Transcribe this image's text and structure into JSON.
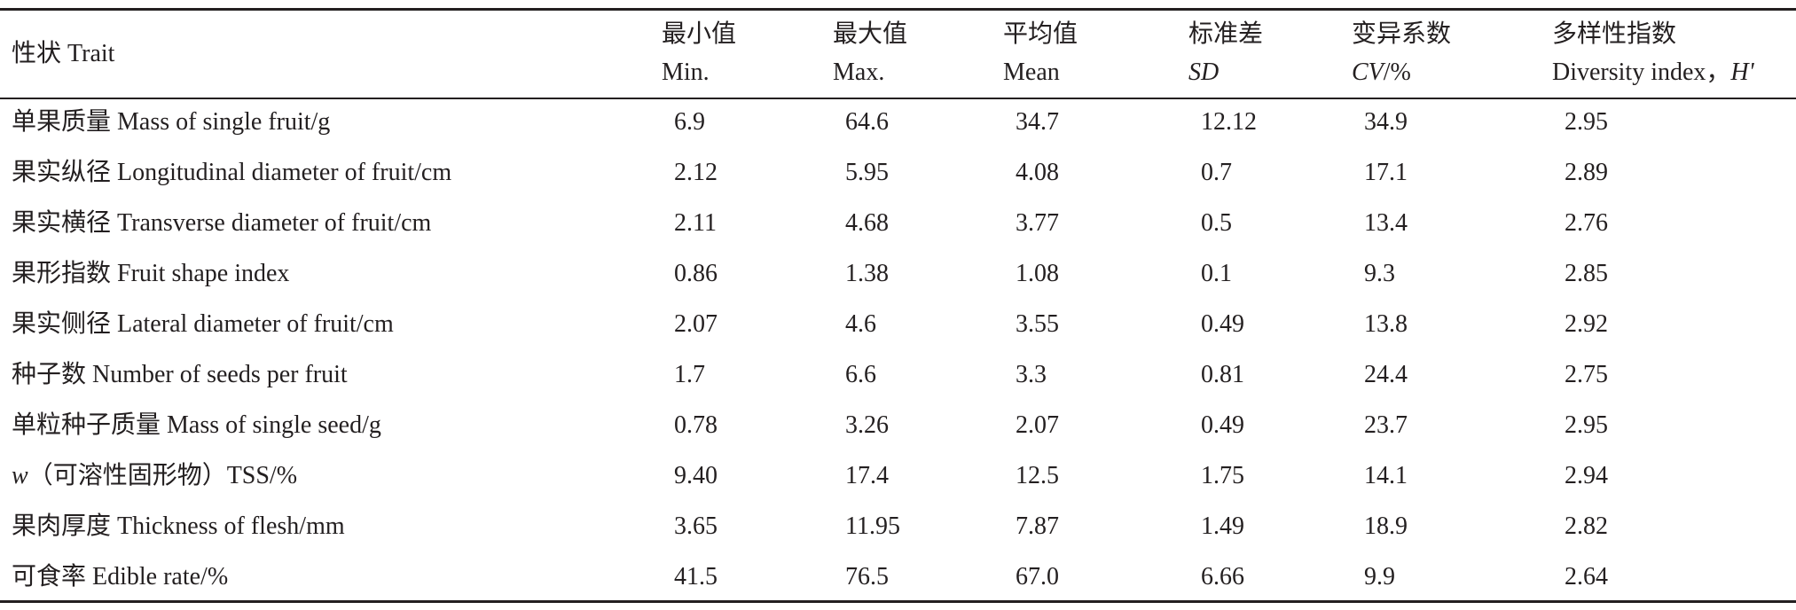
{
  "table": {
    "header": [
      {
        "lines": [
          "性状 Trait"
        ]
      },
      {
        "lines": [
          "最小值",
          "Min."
        ]
      },
      {
        "lines": [
          "最大值",
          "Max."
        ]
      },
      {
        "lines": [
          "平均值",
          "Mean"
        ]
      },
      {
        "lines": [
          "标准差",
          [
            {
              "text": "SD",
              "italic": true
            }
          ]
        ]
      },
      {
        "lines": [
          "变异系数",
          [
            {
              "text": "CV",
              "italic": true
            },
            {
              "text": "/%"
            }
          ]
        ]
      },
      {
        "lines": [
          "多样性指数",
          [
            {
              "text": "Diversity index，"
            },
            {
              "text": "H'",
              "italic": true
            }
          ]
        ]
      }
    ],
    "rows": [
      [
        "单果质量 Mass of single fruit/g",
        "6.9",
        "64.6",
        "34.7",
        "12.12",
        "34.9",
        "2.95"
      ],
      [
        "果实纵径 Longitudinal diameter of fruit/cm",
        "2.12",
        "5.95",
        "4.08",
        "0.7",
        "17.1",
        "2.89"
      ],
      [
        "果实横径 Transverse diameter of fruit/cm",
        "2.11",
        "4.68",
        "3.77",
        "0.5",
        "13.4",
        "2.76"
      ],
      [
        "果形指数 Fruit shape index",
        "0.86",
        "1.38",
        "1.08",
        "0.1",
        "9.3",
        "2.85"
      ],
      [
        "果实侧径 Lateral diameter of fruit/cm",
        "2.07",
        "4.6",
        "3.55",
        "0.49",
        "13.8",
        "2.92"
      ],
      [
        "种子数 Number of seeds per fruit",
        "1.7",
        "6.6",
        "3.3",
        "0.81",
        "24.4",
        "2.75"
      ],
      [
        "单粒种子质量 Mass of single seed/g",
        "0.78",
        "3.26",
        "2.07",
        "0.49",
        "23.7",
        "2.95"
      ],
      [
        [
          {
            "text": "w",
            "italic": true
          },
          {
            "text": "（可溶性固形物）TSS/%"
          }
        ],
        "9.40",
        "17.4",
        "12.5",
        "1.75",
        "14.1",
        "2.94"
      ],
      [
        "果肉厚度 Thickness of flesh/mm",
        "3.65",
        "11.95",
        "7.87",
        "1.49",
        "18.9",
        "2.82"
      ],
      [
        "可食率 Edible rate/%",
        "41.5",
        "76.5",
        "67.0",
        "6.66",
        "9.9",
        "2.64"
      ]
    ]
  }
}
